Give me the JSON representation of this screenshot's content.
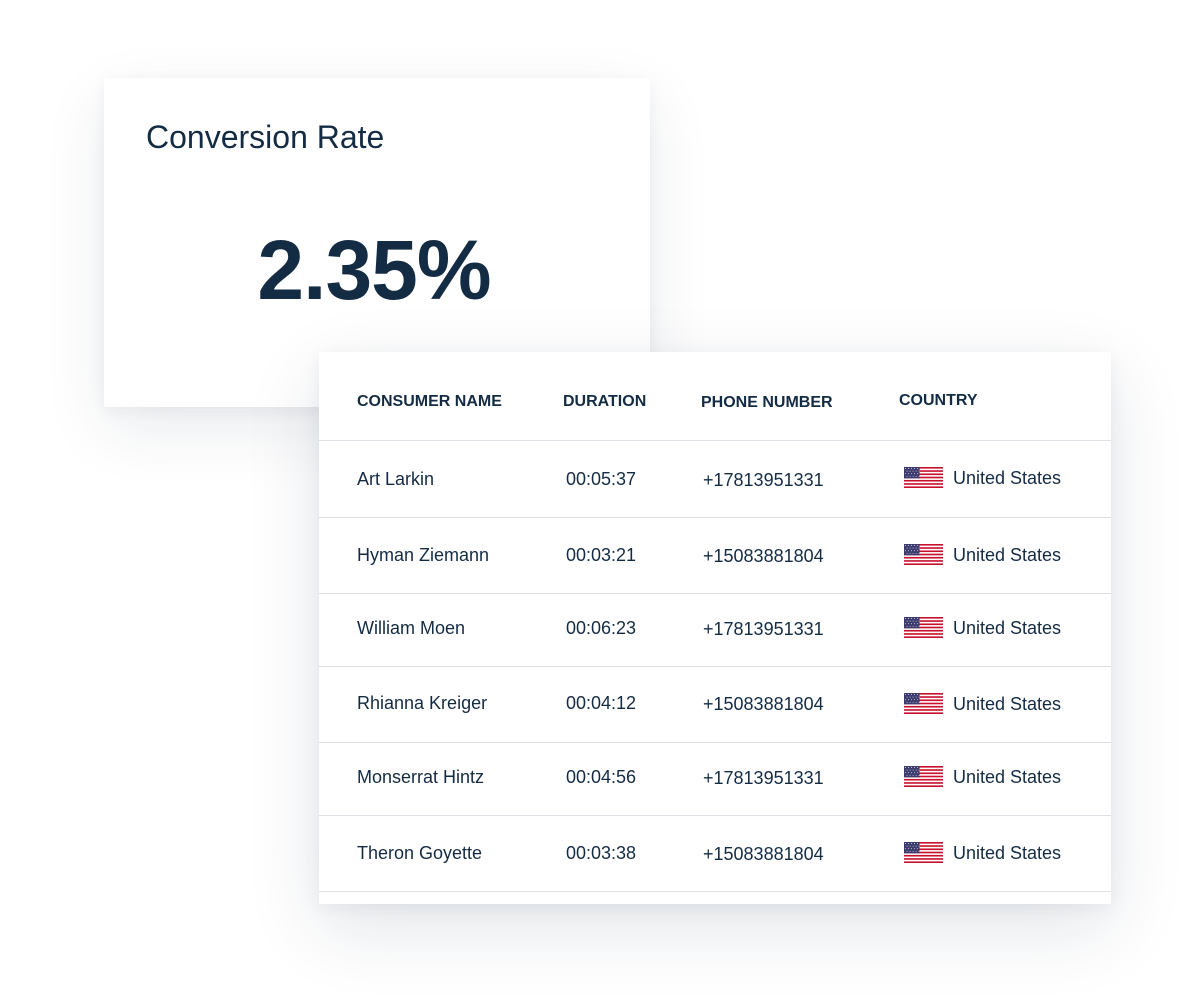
{
  "kpi": {
    "title": "Conversion Rate",
    "value": "2.35%"
  },
  "table": {
    "headers": {
      "name": "CONSUMER NAME",
      "duration": "DURATION",
      "phone": "PHONE NUMBER",
      "country": "COUNTRY"
    },
    "rows": [
      {
        "name": "Art Larkin",
        "duration": "00:05:37",
        "phone": "+17813951331",
        "country": "United States",
        "flag_icon": "us-flag-icon"
      },
      {
        "name": "Hyman Ziemann",
        "duration": "00:03:21",
        "phone": "+15083881804",
        "country": "United States",
        "flag_icon": "us-flag-icon"
      },
      {
        "name": "William Moen",
        "duration": "00:06:23",
        "phone": "+17813951331",
        "country": "United States",
        "flag_icon": "us-flag-icon"
      },
      {
        "name": "Rhianna Kreiger",
        "duration": "00:04:12",
        "phone": "+15083881804",
        "country": "United States",
        "flag_icon": "us-flag-icon"
      },
      {
        "name": "Monserrat Hintz",
        "duration": "00:04:56",
        "phone": "+17813951331",
        "country": "United States",
        "flag_icon": "us-flag-icon"
      },
      {
        "name": "Theron Goyette",
        "duration": "00:03:38",
        "phone": "+15083881804",
        "country": "United States",
        "flag_icon": "us-flag-icon"
      }
    ]
  },
  "colors": {
    "text": "#142b44",
    "divider": "#dcdfe4",
    "flag_red": "#c8102e",
    "flag_blue": "#3c3b6e"
  }
}
